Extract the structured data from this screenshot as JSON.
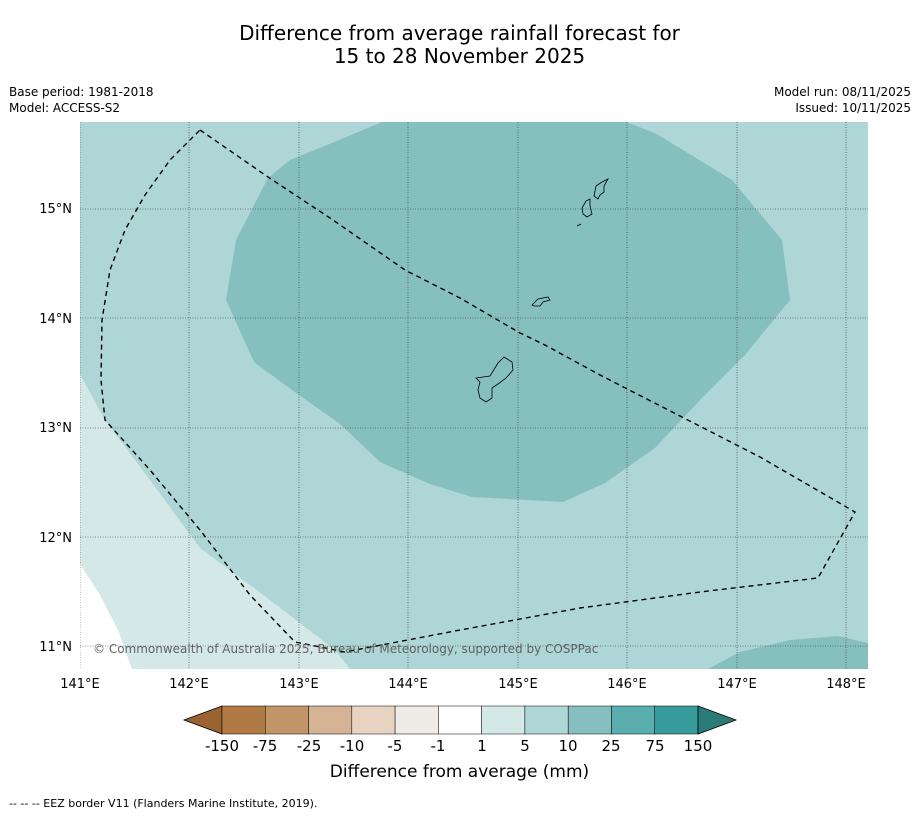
{
  "title": {
    "line1": "Difference from average rainfall forecast for",
    "line2": "15 to 28 November 2025"
  },
  "meta": {
    "base_period": "Base period: 1981-2018",
    "model": "Model: ACCESS-S2",
    "model_run": "Model run: 08/11/2025",
    "issued": "Issued: 10/11/2025"
  },
  "map": {
    "lat_labels": [
      "15°N",
      "14°N",
      "13°N",
      "12°N",
      "11°N"
    ],
    "lon_labels": [
      "141°E",
      "142°E",
      "143°E",
      "144°E",
      "145°E",
      "146°E",
      "147°E",
      "148°E"
    ],
    "copyright": "© Commonwealth of Australia 2025, Bureau of Meteorology, supported by COSPPac"
  },
  "legend": {
    "labels": [
      "-150",
      "-75",
      "-25",
      "-10",
      "-5",
      "-1",
      "1",
      "5",
      "10",
      "25",
      "75",
      "150"
    ],
    "colors": [
      "#9b6331",
      "#b07a45",
      "#c29669",
      "#d6b395",
      "#e7d3c1",
      "#efebe7",
      "#ffffff",
      "#d4e8e7",
      "#aed6d6",
      "#85c0bf",
      "#5caeae",
      "#379b9b",
      "#2a7a78"
    ],
    "title": "Difference from average (mm)"
  },
  "footer": "--  --  -- EEZ border V11 (Flanders Marine Institute, 2019)."
}
